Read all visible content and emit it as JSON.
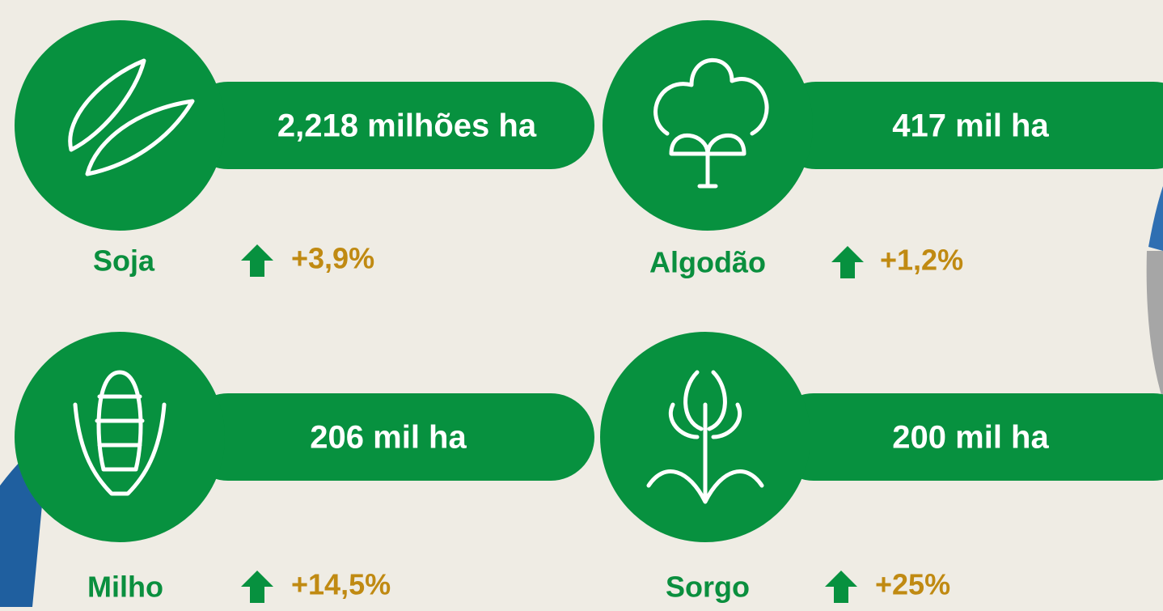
{
  "cards": [
    {
      "crop": "Soja",
      "area": "2,218 milhões ha",
      "change": "+3,9%"
    },
    {
      "crop": "Algodão",
      "area": "417 mil ha",
      "change": "+1,2%"
    },
    {
      "crop": "Milho",
      "area": "206 mil ha",
      "change": "+14,5%"
    },
    {
      "crop": "Sorgo",
      "area": "200 mil ha",
      "change": "+25%"
    }
  ]
}
